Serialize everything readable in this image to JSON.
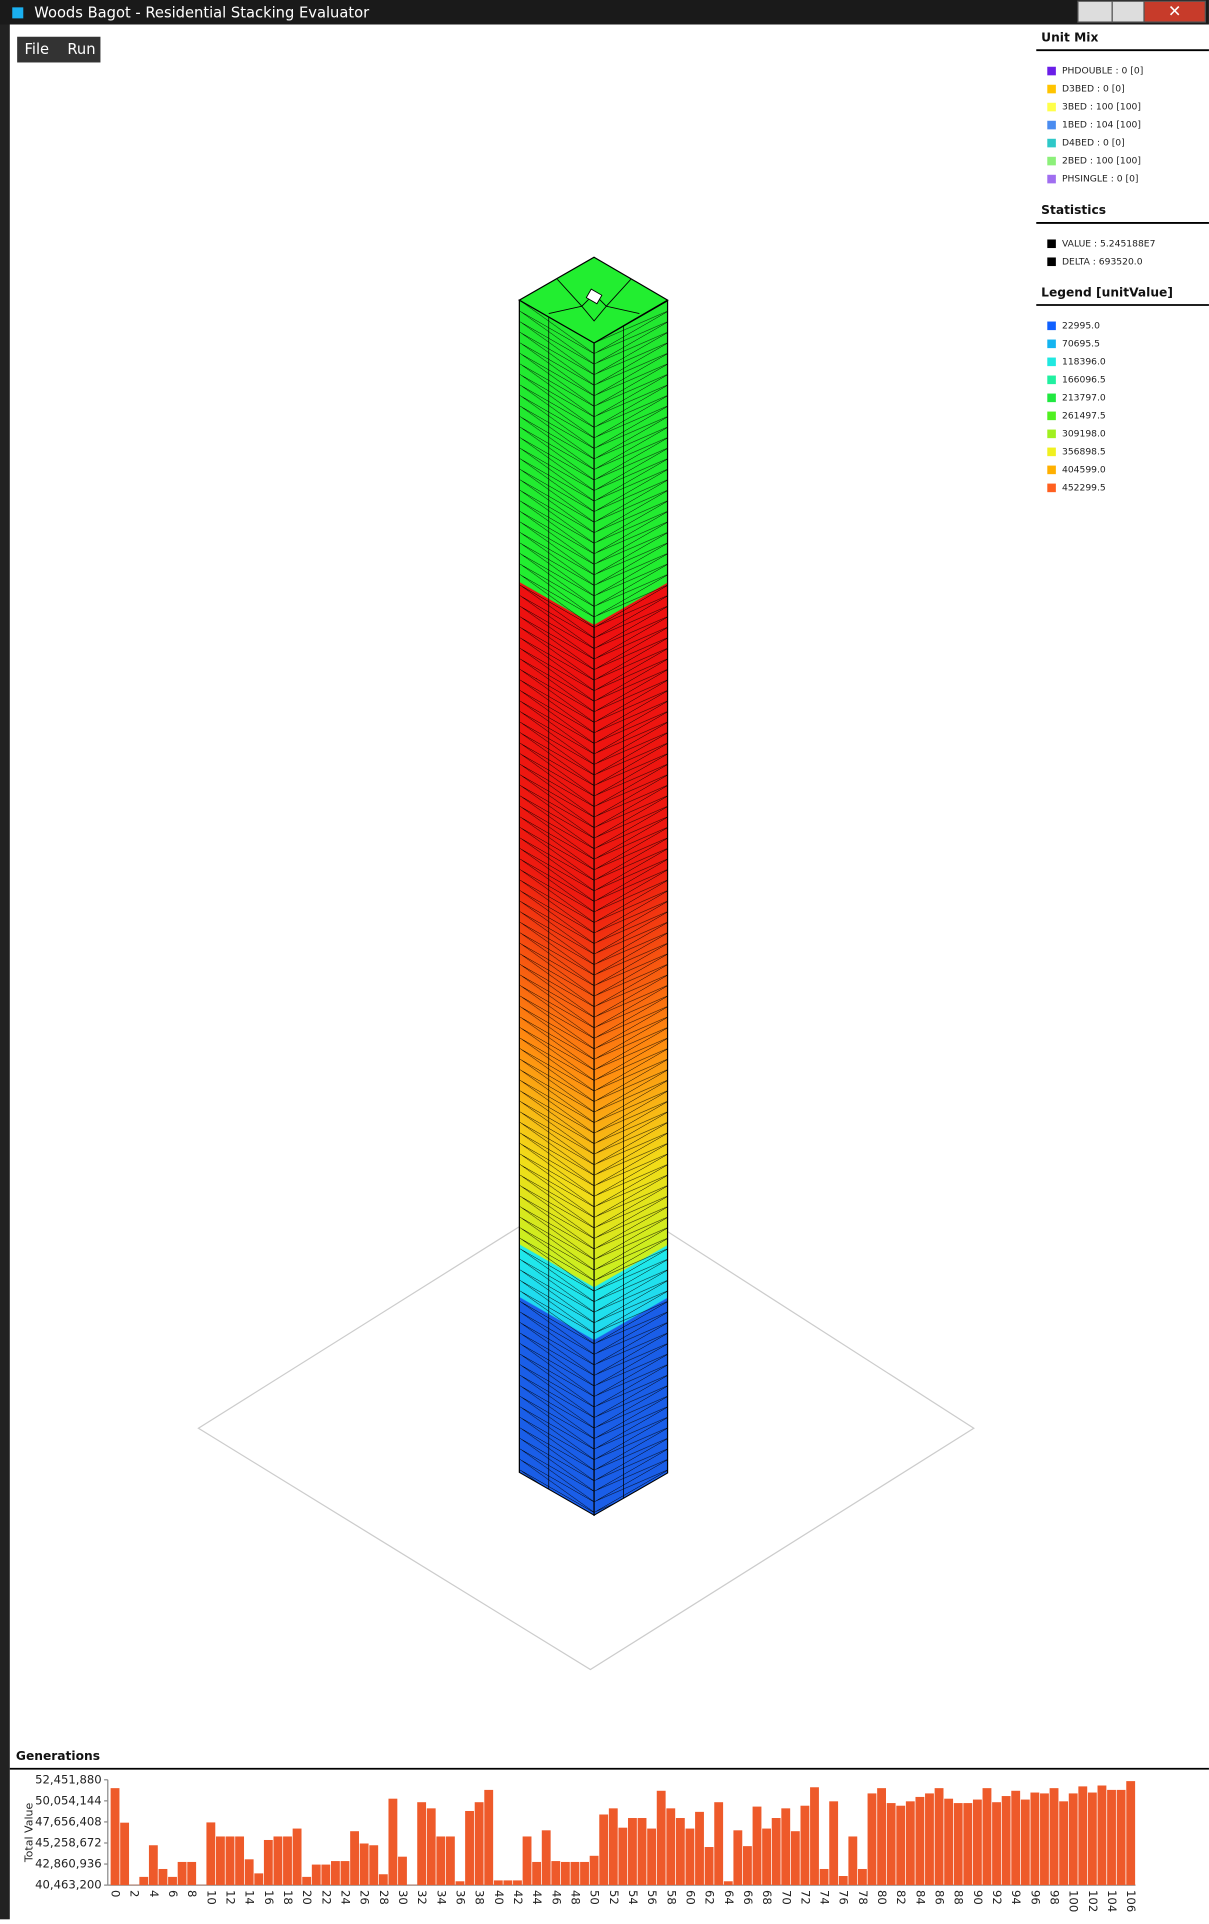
{
  "window": {
    "title": "Woods Bagot - Residential Stacking Evaluator"
  },
  "menu": [
    "File",
    "Run"
  ],
  "unit_mix": {
    "title": "Unit Mix",
    "items": [
      {
        "label": "PHDOUBLE : 0 [0]",
        "color": "#6a1ee8"
      },
      {
        "label": "D3BED : 0 [0]",
        "color": "#ffc400"
      },
      {
        "label": "3BED : 100 [100]",
        "color": "#ffff4a"
      },
      {
        "label": "1BED : 104 [100]",
        "color": "#4a8cf0"
      },
      {
        "label": "D4BED : 0 [0]",
        "color": "#2ec8c8"
      },
      {
        "label": "2BED : 100 [100]",
        "color": "#8cf07a"
      },
      {
        "label": "PHSINGLE : 0 [0]",
        "color": "#a06ef0"
      }
    ]
  },
  "statistics": {
    "title": "Statistics",
    "items": [
      {
        "label": "VALUE : 5.245188E7",
        "color": "#000000"
      },
      {
        "label": "DELTA : 693520.0",
        "color": "#000000"
      }
    ]
  },
  "legend": {
    "title": "Legend [unitValue]",
    "items": [
      {
        "label": "22995.0",
        "color": "#1060ff"
      },
      {
        "label": "70695.5",
        "color": "#14b4f0"
      },
      {
        "label": "118396.0",
        "color": "#20e8e0"
      },
      {
        "label": "166096.5",
        "color": "#20f0a0"
      },
      {
        "label": "213797.0",
        "color": "#20e840"
      },
      {
        "label": "261497.5",
        "color": "#50f020"
      },
      {
        "label": "309198.0",
        "color": "#a0f020"
      },
      {
        "label": "356898.5",
        "color": "#f0f020"
      },
      {
        "label": "404599.0",
        "color": "#ffb000"
      },
      {
        "label": "452299.5",
        "color": "#ff6020"
      }
    ]
  },
  "generations": {
    "title": "Generations"
  },
  "chart_data": {
    "type": "bar",
    "ylabel": "Total Value",
    "color": "#ee5a2a",
    "ylim": [
      40463200,
      52451880
    ],
    "yticks": [
      {
        "value": 40463200,
        "label": "40,463,200"
      },
      {
        "value": 42860936,
        "label": "42,860,936"
      },
      {
        "value": 45258672,
        "label": "45,258,672"
      },
      {
        "value": 47656408,
        "label": "47,656,408"
      },
      {
        "value": 50054144,
        "label": "50,054,144"
      },
      {
        "value": 52451880,
        "label": "52,451,880"
      }
    ],
    "categories": [
      0,
      null,
      2,
      null,
      4,
      null,
      6,
      null,
      8,
      null,
      10,
      null,
      12,
      null,
      14,
      null,
      16,
      null,
      18,
      null,
      20,
      null,
      22,
      null,
      24,
      null,
      26,
      null,
      28,
      null,
      30,
      null,
      32,
      null,
      34,
      null,
      36,
      null,
      38,
      null,
      40,
      null,
      42,
      null,
      44,
      null,
      46,
      null,
      48,
      null,
      50,
      null,
      52,
      null,
      54,
      null,
      56,
      null,
      58,
      null,
      60,
      null,
      62,
      null,
      64,
      null,
      66,
      null,
      68,
      null,
      70,
      null,
      72,
      null,
      74,
      null,
      76,
      null,
      78,
      null,
      80,
      null,
      82,
      null,
      84,
      null,
      86,
      null,
      88,
      null,
      90,
      null,
      92,
      null,
      94,
      null,
      96,
      null,
      98,
      null,
      100,
      null,
      102,
      null,
      104,
      null,
      106
    ],
    "values": [
      51500000,
      47570000,
      40500000,
      41400000,
      45000000,
      42300000,
      41400000,
      43100000,
      43100000,
      40500000,
      47600000,
      46000000,
      46000000,
      46000000,
      43400000,
      41800000,
      45600000,
      46000000,
      46000000,
      46900000,
      41400000,
      42800000,
      42800000,
      43200000,
      43200000,
      46600000,
      45200000,
      45000000,
      41700000,
      50300000,
      43700000,
      40500000,
      49900000,
      49200000,
      46000000,
      46000000,
      40900000,
      48900000,
      49900000,
      51300000,
      41000000,
      41000000,
      41000000,
      46000000,
      43100000,
      46700000,
      43200000,
      43100000,
      43100000,
      43100000,
      43800000,
      48500000,
      49200000,
      47000000,
      48100000,
      48100000,
      46900000,
      51200000,
      49200000,
      48100000,
      46900000,
      48800000,
      44800000,
      49900000,
      40900000,
      46700000,
      44900000,
      49400000,
      46900000,
      48100000,
      49200000,
      46600000,
      49500000,
      51600000,
      42300000,
      50000000,
      41500000,
      46000000,
      42300000,
      50900000,
      51500000,
      49800000,
      49500000,
      50000000,
      50500000,
      50900000,
      51500000,
      50300000,
      49800000,
      49800000,
      50200000,
      51500000,
      49900000,
      50600000,
      51200000,
      50200000,
      51000000,
      50900000,
      51500000,
      50000000,
      50900000,
      51700000,
      51000000,
      51800000,
      51300000,
      51300000,
      52300000
    ]
  }
}
